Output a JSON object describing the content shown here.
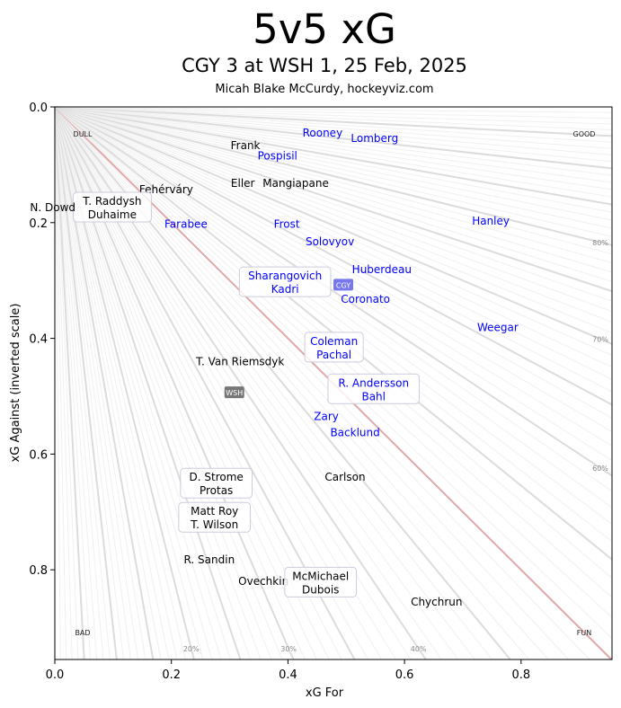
{
  "chart_data": {
    "type": "scatter",
    "title": "5v5 xG",
    "subtitle": "CGY 3 at WSH 1, 25 Feb, 2025",
    "credit": "Micah Blake McCurdy, hockeyviz.com",
    "xlabel": "xG For",
    "ylabel": "xG Against (inverted scale)",
    "xlim": [
      0,
      0.956
    ],
    "ylim": [
      0,
      0.955
    ],
    "y_inverted": true,
    "xticks": [
      "0.0",
      "0.2",
      "0.4",
      "0.6",
      "0.8"
    ],
    "xtick_values": [
      0,
      0.2,
      0.4,
      0.6,
      0.8
    ],
    "yticks": [
      "0.0",
      "0.2",
      "0.4",
      "0.6",
      "0.8"
    ],
    "ytick_values": [
      0,
      0.2,
      0.4,
      0.6,
      0.8
    ],
    "corner_labels": {
      "top_left": "DULL",
      "top_right": "GOOD",
      "bottom_left": "BAD",
      "bottom_right": "FUN"
    },
    "pct_labels_right": [
      {
        "label": "80%",
        "p": 0.8
      },
      {
        "label": "70%",
        "p": 0.7
      },
      {
        "label": "60%",
        "p": 0.6
      }
    ],
    "pct_labels_bottom": [
      {
        "label": "20%",
        "p": 0.2
      },
      {
        "label": "30%",
        "p": 0.3
      },
      {
        "label": "40%",
        "p": 0.4
      }
    ],
    "team_colors": {
      "CGY": "#0000ff",
      "WSH": "#000000"
    },
    "team_badges": [
      {
        "team": "CGY",
        "x": 0.495,
        "y": 0.308,
        "color": "#7777ee"
      },
      {
        "team": "WSH",
        "x": 0.308,
        "y": 0.494,
        "color": "#777777"
      }
    ],
    "players": [
      {
        "names": [
          "Rooney"
        ],
        "team": "CGY",
        "x": 0.484,
        "y": 0.048
      },
      {
        "names": [
          "Lomberg"
        ],
        "team": "CGY",
        "x": 0.524,
        "y": 0.051
      },
      {
        "names": [
          "Frank"
        ],
        "team": "WSH",
        "x": 0.327,
        "y": 0.067
      },
      {
        "names": [
          "Pospisil"
        ],
        "team": "CGY",
        "x": 0.382,
        "y": 0.085
      },
      {
        "names": [
          "Eller"
        ],
        "team": "WSH",
        "x": 0.338,
        "y": 0.132
      },
      {
        "names": [
          "Mangiapane"
        ],
        "team": "WSH",
        "x": 0.401,
        "y": 0.132
      },
      {
        "names": [
          "Fehérváry"
        ],
        "team": "WSH",
        "x": 0.191,
        "y": 0.143
      },
      {
        "names": [
          "T. Raddysh",
          "Duhaime"
        ],
        "team": "WSH",
        "x": 0.08,
        "y": 0.174
      },
      {
        "names": [
          "N. Dowd"
        ],
        "team": "WSH",
        "x": 0.015,
        "y": 0.174
      },
      {
        "names": [
          "Farabee"
        ],
        "team": "CGY",
        "x": 0.225,
        "y": 0.203
      },
      {
        "names": [
          "Frost"
        ],
        "team": "CGY",
        "x": 0.398,
        "y": 0.203
      },
      {
        "names": [
          "Hanley"
        ],
        "team": "CGY",
        "x": 0.748,
        "y": 0.197
      },
      {
        "names": [
          "Solovyov"
        ],
        "team": "CGY",
        "x": 0.472,
        "y": 0.233
      },
      {
        "names": [
          "Huberdeau"
        ],
        "team": "CGY",
        "x": 0.561,
        "y": 0.281
      },
      {
        "names": [
          "Sharangovich",
          "Kadri"
        ],
        "team": "CGY",
        "x": 0.395,
        "y": 0.303
      },
      {
        "names": [
          "Coronato"
        ],
        "team": "CGY",
        "x": 0.533,
        "y": 0.332
      },
      {
        "names": [
          "Weegar"
        ],
        "team": "CGY",
        "x": 0.76,
        "y": 0.381
      },
      {
        "names": [
          "Coleman",
          "Pachal"
        ],
        "team": "CGY",
        "x": 0.479,
        "y": 0.416
      },
      {
        "names": [
          "T. Van Riemsdyk"
        ],
        "team": "WSH",
        "x": 0.318,
        "y": 0.44
      },
      {
        "names": [
          "R. Andersson",
          "Bahl"
        ],
        "team": "CGY",
        "x": 0.547,
        "y": 0.488
      },
      {
        "names": [
          "Zary"
        ],
        "team": "CGY",
        "x": 0.472,
        "y": 0.544
      },
      {
        "names": [
          "Backlund"
        ],
        "team": "CGY",
        "x": 0.509,
        "y": 0.555
      },
      {
        "names": [
          "Carlson"
        ],
        "team": "WSH",
        "x": 0.498,
        "y": 0.64
      },
      {
        "names": [
          "D. Strome",
          "Protas"
        ],
        "team": "WSH",
        "x": 0.277,
        "y": 0.651
      },
      {
        "names": [
          "Matt Roy",
          "T. Wilson"
        ],
        "team": "WSH",
        "x": 0.274,
        "y": 0.71
      },
      {
        "names": [
          "R. Sandin"
        ],
        "team": "WSH",
        "x": 0.265,
        "y": 0.783
      },
      {
        "names": [
          "Ovechkin"
        ],
        "team": "WSH",
        "x": 0.358,
        "y": 0.82
      },
      {
        "names": [
          "McMichael",
          "Dubois"
        ],
        "team": "WSH",
        "x": 0.456,
        "y": 0.822
      },
      {
        "names": [
          "Chychrun"
        ],
        "team": "WSH",
        "x": 0.655,
        "y": 0.856
      }
    ]
  }
}
